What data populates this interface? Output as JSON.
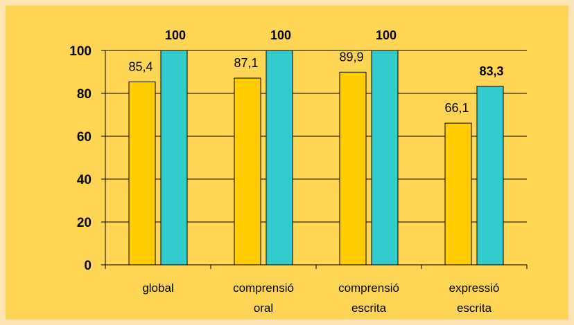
{
  "chart_data": {
    "type": "bar",
    "title": "",
    "xlabel": "",
    "ylabel": "",
    "ylim": [
      0,
      100
    ],
    "yticks": [
      "0",
      "20",
      "40",
      "60",
      "80",
      "100"
    ],
    "grid": true,
    "legend": "none",
    "categories": [
      [
        "global"
      ],
      [
        "comprensió",
        "oral"
      ],
      [
        "comprensió",
        "escrita"
      ],
      [
        "expressió",
        "escrita"
      ]
    ],
    "series": [
      {
        "color": "#ffcc00",
        "values": [
          85.4,
          87.1,
          89.9,
          66.1
        ],
        "labels": [
          "85,4",
          "87,1",
          "89,9",
          "66,1"
        ],
        "label_bold": false
      },
      {
        "color": "#33cccc",
        "values": [
          100,
          100,
          100,
          83.3
        ],
        "labels": [
          "100",
          "100",
          "100",
          "83,3"
        ],
        "label_bold": true
      }
    ]
  },
  "colors": {
    "background": "#fde2b6",
    "plot_panel": "#ffd556",
    "gridline": "#000000",
    "bar_outline": "#000000"
  }
}
